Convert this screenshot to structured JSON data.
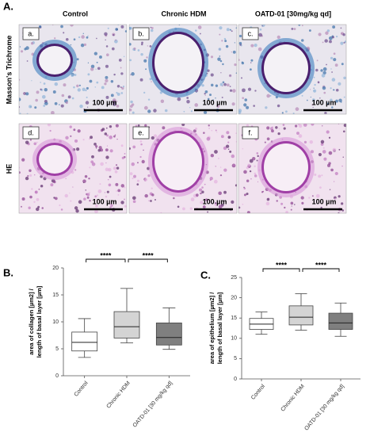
{
  "panel_a": {
    "label": "A.",
    "columns": [
      "Control",
      "Chronic HDM",
      "OATD-01 [30mg/kg qd]"
    ],
    "rows": [
      "Masson's Trichrome",
      "HE"
    ],
    "panels": [
      {
        "letter": "a.",
        "scale_label": "100 µm"
      },
      {
        "letter": "b.",
        "scale_label": "100 µm"
      },
      {
        "letter": "c.",
        "scale_label": "100 µm"
      },
      {
        "letter": "d.",
        "scale_label": "100 µm"
      },
      {
        "letter": "e.",
        "scale_label": "100 µm"
      },
      {
        "letter": "f.",
        "scale_label": "100 µm"
      }
    ]
  },
  "chart_data": [
    {
      "type": "box",
      "label": "B.",
      "ylabel_lines": [
        "area of collagen [µm2] /",
        "length of basal layer [µm]"
      ],
      "categories": [
        "Control",
        "Chronic HDM",
        "OATD-01 [30 mg/kg qd]"
      ],
      "colors": [
        "#ffffff",
        "#d4d4d4",
        "#7f7f7f"
      ],
      "boxes": [
        {
          "min": 3.4,
          "q1": 4.6,
          "median": 6.2,
          "q3": 8.1,
          "max": 10.6
        },
        {
          "min": 6.1,
          "q1": 7.0,
          "median": 9.1,
          "q3": 11.9,
          "max": 16.2
        },
        {
          "min": 4.9,
          "q1": 5.7,
          "median": 7.1,
          "q3": 9.8,
          "max": 12.6
        }
      ],
      "annotations": [
        "****",
        "****"
      ],
      "ylim": [
        0,
        20
      ],
      "yticks": [
        0,
        5,
        10,
        15,
        20
      ]
    },
    {
      "type": "box",
      "label": "C.",
      "ylabel_lines": [
        "area of epithelium [µm2] /",
        "length of basal layer [µm]"
      ],
      "categories": [
        "Control",
        "Chronic HDM",
        "OATD-01 [30 mg/kg qd]"
      ],
      "colors": [
        "#ffffff",
        "#d4d4d4",
        "#7f7f7f"
      ],
      "boxes": [
        {
          "min": 11.0,
          "q1": 12.2,
          "median": 13.5,
          "q3": 14.9,
          "max": 16.5
        },
        {
          "min": 12.0,
          "q1": 13.3,
          "median": 15.2,
          "q3": 18.0,
          "max": 21.0
        },
        {
          "min": 10.5,
          "q1": 12.2,
          "median": 13.8,
          "q3": 16.2,
          "max": 18.7
        }
      ],
      "annotations": [
        "****",
        "****"
      ],
      "ylim": [
        0,
        25
      ],
      "yticks": [
        0,
        5,
        10,
        15,
        20,
        25
      ]
    }
  ]
}
